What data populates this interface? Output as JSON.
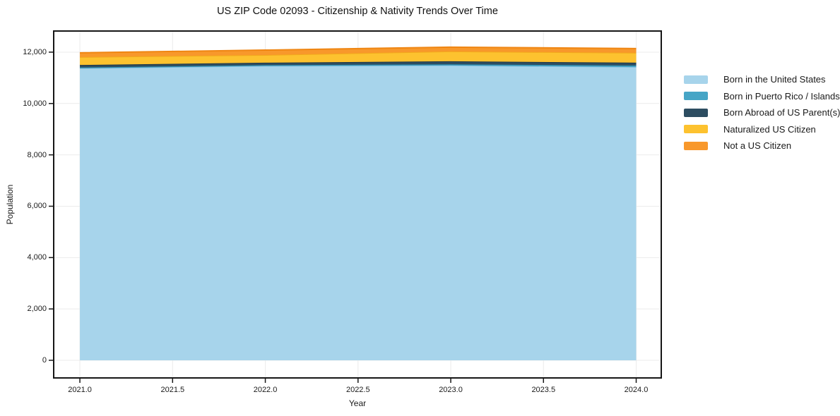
{
  "title": "US ZIP Code 02093 - Citizenship & Nativity Trends Over Time",
  "chart_data": {
    "type": "area",
    "stacked": true,
    "title": "US ZIP Code 02093 - Citizenship & Nativity Trends Over Time",
    "xlabel": "Year",
    "ylabel": "Population",
    "x": [
      2021,
      2022,
      2023,
      2024
    ],
    "series": [
      {
        "name": "Born in the United States",
        "values": [
          11370,
          11460,
          11480,
          11420
        ],
        "fill": "#a7d4eb",
        "line": "#85bcdb"
      },
      {
        "name": "Born in Puerto Rico / Islands",
        "values": [
          35,
          35,
          45,
          60
        ],
        "fill": "#46a5c6",
        "line": "#3191b3"
      },
      {
        "name": "Born Abroad of US Parent(s)",
        "values": [
          95,
          95,
          120,
          110
        ],
        "fill": "#2d4d61",
        "line": "#20394a"
      },
      {
        "name": "Naturalized US Citizen",
        "values": [
          310,
          300,
          385,
          385
        ],
        "fill": "#fdc22f",
        "line": "#f2a91c"
      },
      {
        "name": "Not a US Citizen",
        "values": [
          165,
          190,
          165,
          165
        ],
        "fill": "#f8982b",
        "line": "#ef8613"
      }
    ],
    "xlim": [
      2020.855,
      2024.139
    ],
    "ylim": [
      -714,
      12850
    ],
    "xticks": {
      "values": [
        2021.0,
        2021.5,
        2022.0,
        2022.5,
        2023.0,
        2023.5,
        2024.0
      ],
      "labels": [
        "2021.0",
        "2021.5",
        "2022.0",
        "2022.5",
        "2023.0",
        "2023.5",
        "2024.0"
      ]
    },
    "yticks": {
      "values": [
        0,
        2000,
        4000,
        6000,
        8000,
        10000,
        12000
      ],
      "labels": [
        "0",
        "2,000",
        "4,000",
        "6,000",
        "8,000",
        "10,000",
        "12,000"
      ]
    },
    "grid": true,
    "grid_color": "#ebebeb",
    "axis_color": "#161616",
    "legend_position": "right-of-plot"
  }
}
